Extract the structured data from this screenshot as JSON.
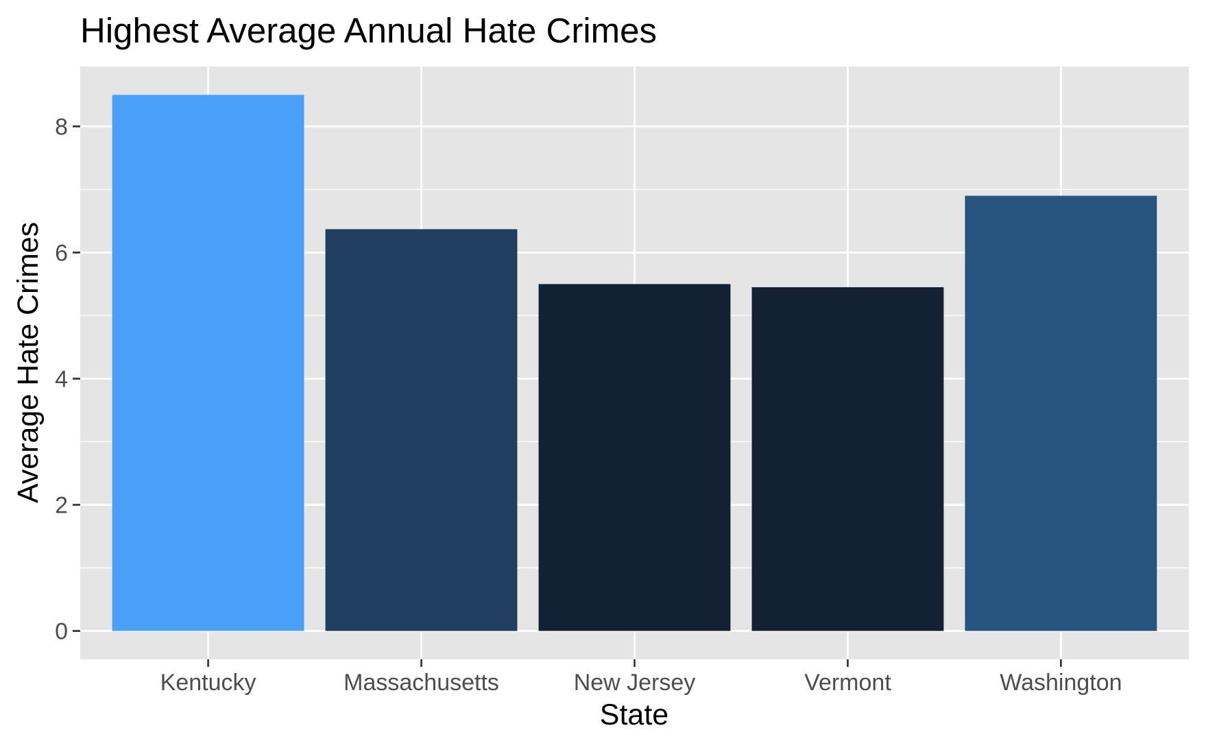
{
  "chart_data": {
    "type": "bar",
    "title": "Highest Average Annual Hate Crimes",
    "xlabel": "State",
    "ylabel": "Average Hate Crimes",
    "categories": [
      "Kentucky",
      "Massachusetts",
      "New Jersey",
      "Vermont",
      "Washington"
    ],
    "values": [
      8.5,
      6.37,
      5.5,
      5.45,
      6.9
    ],
    "bar_colors": [
      "#4aa0f7",
      "#203e5f",
      "#122133",
      "#122133",
      "#27537f"
    ],
    "ylim": [
      -0.45,
      8.95
    ],
    "yticks": [
      0,
      2,
      4,
      6,
      8
    ],
    "ytick_labels": [
      "0",
      "2",
      "4",
      "6",
      "8"
    ],
    "grid": true,
    "legend": "none",
    "colors": {
      "panel_background": "#e5e5e5",
      "grid_line": "#ffffff",
      "tick_mark": "#333333",
      "tick_text": "#4d4d4d",
      "text": "#000000"
    }
  }
}
